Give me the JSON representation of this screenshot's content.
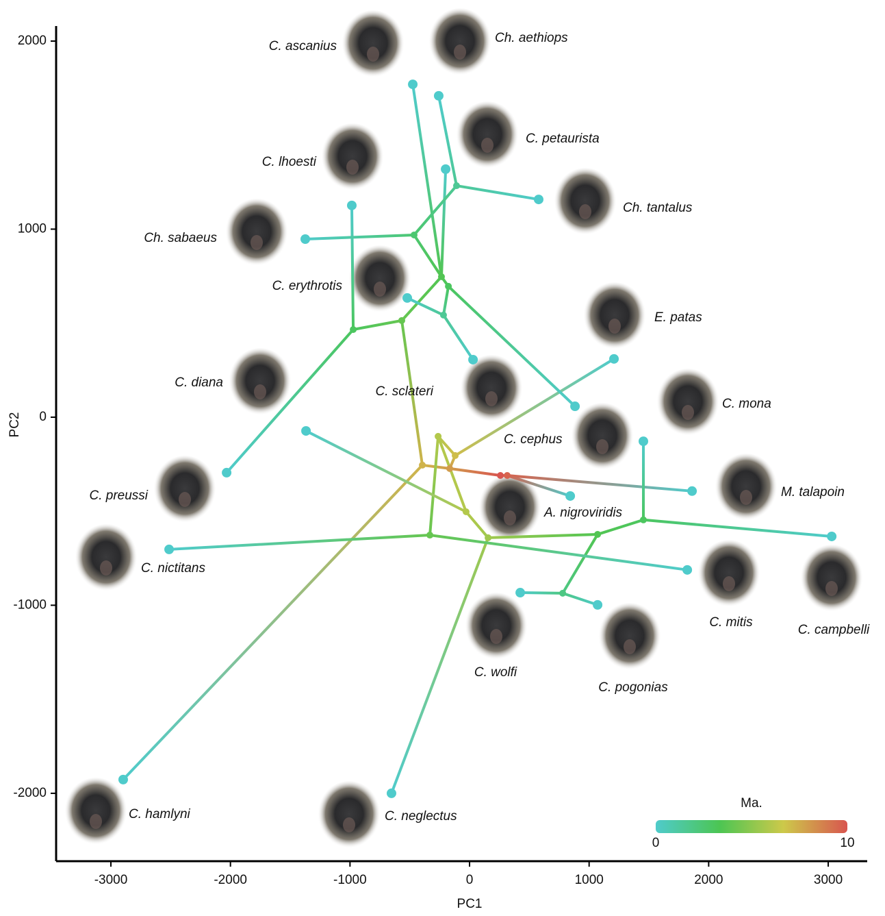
{
  "chart_data": {
    "type": "phylomorphospace",
    "x_label": "PC1",
    "y_label": "PC2",
    "xlim": [
      -3458,
      3326
    ],
    "ylim": [
      -2361,
      2080
    ],
    "xticks": [
      -3000,
      -2000,
      -1000,
      0,
      1000,
      2000,
      3000
    ],
    "yticks": [
      -2000,
      -1000,
      0,
      1000,
      2000
    ],
    "colorbar": {
      "label": "Ma.",
      "lim": [
        0,
        10
      ],
      "ticks": [
        0,
        10
      ],
      "colors": [
        "#4fcbcb",
        "#4cc553",
        "#cdc94a",
        "#d8554f"
      ]
    },
    "nodes": [
      {
        "label": "C. ascanius",
        "x": -475,
        "y": 1770,
        "age": 0
      },
      {
        "label": "Ch. aethiops",
        "x": -258,
        "y": 1709,
        "age": 0
      },
      {
        "label": "C. petaurista",
        "x": -200,
        "y": 1319,
        "age": 0
      },
      {
        "label": "Ch. tantalus",
        "x": 578,
        "y": 1158,
        "age": 0
      },
      {
        "label": "C. lhoesti",
        "x": -985,
        "y": 1126,
        "age": 0
      },
      {
        "label": "Ch. sabaeus",
        "x": -1374,
        "y": 947,
        "age": 0
      },
      {
        "label": "C. erythrotis",
        "x": -521,
        "y": 634,
        "age": 0
      },
      {
        "label": "C. sclateri",
        "x": 29,
        "y": 306,
        "age": 0
      },
      {
        "label": "E. patas",
        "x": 1208,
        "y": 310,
        "age": 0
      },
      {
        "label": "C. cephus",
        "x": 882,
        "y": 58,
        "age": 0
      },
      {
        "label": "C. mona",
        "x": 1454,
        "y": -128,
        "age": 0
      },
      {
        "label": "C. diana",
        "x": -1368,
        "y": -73,
        "age": 0
      },
      {
        "label": "M. talapoin",
        "x": 1861,
        "y": -393,
        "age": 0
      },
      {
        "label": "A. nigroviridis",
        "x": 842,
        "y": -419,
        "age": 0
      },
      {
        "label": "C. preussi",
        "x": -2032,
        "y": -295,
        "age": 0
      },
      {
        "label": "C. nictitans",
        "x": -2513,
        "y": -703,
        "age": 0
      },
      {
        "label": "C. mitis",
        "x": 1821,
        "y": -812,
        "age": 0
      },
      {
        "label": "C. campbelli",
        "x": 3029,
        "y": -634,
        "age": 0
      },
      {
        "label": "C. wolfi",
        "x": 424,
        "y": -933,
        "age": 0
      },
      {
        "label": "C. pogonias",
        "x": 1071,
        "y": -998,
        "age": 0
      },
      {
        "label": "C. hamlyni",
        "x": -2897,
        "y": -1927,
        "age": 0
      },
      {
        "label": "C. neglectus",
        "x": -653,
        "y": -2000,
        "age": 0
      },
      {
        "x": 258,
        "y": -310,
        "age": 10
      },
      {
        "x": 315,
        "y": -310,
        "age": 9.6
      },
      {
        "x": -166,
        "y": -273,
        "age": 8
      },
      {
        "x": -395,
        "y": -255,
        "age": 7.3
      },
      {
        "x": -120,
        "y": -204,
        "age": 7
      },
      {
        "x": -263,
        "y": -102,
        "age": 6
      },
      {
        "x": -29,
        "y": -503,
        "age": 6
      },
      {
        "x": 155,
        "y": -641,
        "age": 5.5
      },
      {
        "x": -332,
        "y": -627,
        "age": 4
      },
      {
        "x": 1071,
        "y": -623,
        "age": 3.5
      },
      {
        "x": 1454,
        "y": -546,
        "age": 3
      },
      {
        "x": 779,
        "y": -936,
        "age": 2
      },
      {
        "x": -567,
        "y": 514,
        "age": 4
      },
      {
        "x": -973,
        "y": 466,
        "age": 3
      },
      {
        "x": -235,
        "y": 747,
        "age": 3.5
      },
      {
        "x": -177,
        "y": 696,
        "age": 3
      },
      {
        "x": -464,
        "y": 969,
        "age": 2.5
      },
      {
        "x": -109,
        "y": 1231,
        "age": 1.5
      },
      {
        "x": -218,
        "y": 543,
        "age": 1.5
      }
    ],
    "edges": [
      [
        22,
        23
      ],
      [
        23,
        12
      ],
      [
        23,
        13
      ],
      [
        22,
        24
      ],
      [
        24,
        25
      ],
      [
        24,
        26
      ],
      [
        25,
        34
      ],
      [
        25,
        20
      ],
      [
        26,
        27
      ],
      [
        26,
        8
      ],
      [
        27,
        30
      ],
      [
        27,
        28
      ],
      [
        28,
        11
      ],
      [
        28,
        29
      ],
      [
        29,
        21
      ],
      [
        29,
        31
      ],
      [
        31,
        32
      ],
      [
        31,
        33
      ],
      [
        32,
        10
      ],
      [
        32,
        17
      ],
      [
        33,
        18
      ],
      [
        33,
        19
      ],
      [
        30,
        15
      ],
      [
        30,
        16
      ],
      [
        34,
        35
      ],
      [
        34,
        36
      ],
      [
        35,
        4
      ],
      [
        35,
        14
      ],
      [
        36,
        38
      ],
      [
        36,
        37
      ],
      [
        36,
        2
      ],
      [
        36,
        0
      ],
      [
        38,
        5
      ],
      [
        38,
        39
      ],
      [
        39,
        1
      ],
      [
        39,
        3
      ],
      [
        37,
        40
      ],
      [
        37,
        9
      ],
      [
        40,
        6
      ],
      [
        40,
        7
      ]
    ]
  }
}
